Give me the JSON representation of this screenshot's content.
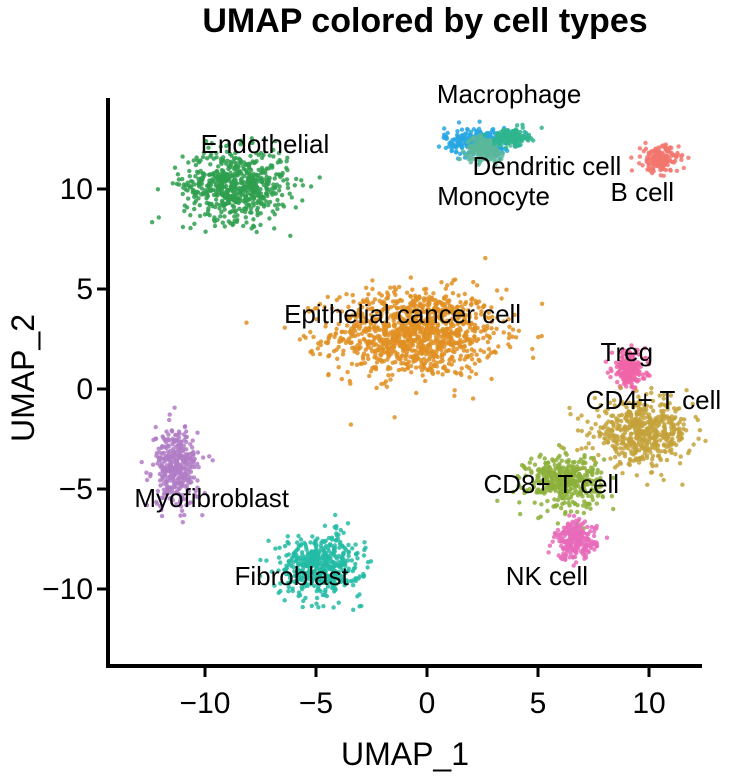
{
  "chart_data": {
    "type": "scatter",
    "title": "UMAP colored by cell types",
    "xlabel": "UMAP_1",
    "ylabel": "UMAP_2",
    "xlim": [
      -14,
      13
    ],
    "ylim": [
      -14,
      14.5
    ],
    "xticks": [
      -10,
      -5,
      0,
      5,
      10
    ],
    "xtick_labels": [
      "−10",
      "−5",
      "0",
      "5",
      "10"
    ],
    "yticks": [
      10,
      5,
      0,
      -5,
      -10
    ],
    "ytick_labels": [
      "10",
      "5",
      "0",
      "−5",
      "−10"
    ],
    "grid": false,
    "legend": "none",
    "clusters": [
      {
        "label": "Epithelial cancer cell",
        "color": "#E08F22",
        "center": [
          -0.5,
          2.8
        ],
        "spread": [
          4.5,
          2.6
        ],
        "label_at": [
          -1.1,
          3.3
        ]
      },
      {
        "label": "Endothelial",
        "color": "#2E9F4E",
        "center": [
          -8.6,
          10.2
        ],
        "spread": [
          2.8,
          2.1
        ],
        "label_at": [
          -7.3,
          11.8
        ]
      },
      {
        "label": "Macrophage",
        "color": "#27A7E3",
        "center": [
          2.3,
          12.4
        ],
        "spread": [
          1.8,
          0.8
        ],
        "label_at": [
          3.7,
          14.3
        ]
      },
      {
        "label": "Dendritic cell",
        "color": "#5AB79A",
        "center": [
          2.6,
          12.0
        ],
        "spread": [
          1.0,
          0.7
        ],
        "label_at": [
          5.4,
          10.7
        ]
      },
      {
        "label": "Monocyte",
        "color": "#2FB58E",
        "center": [
          3.8,
          12.6
        ],
        "spread": [
          0.9,
          0.5
        ],
        "label_at": [
          3.0,
          9.2
        ]
      },
      {
        "label": "B cell",
        "color": "#F2766E",
        "center": [
          10.5,
          11.5
        ],
        "spread": [
          1.0,
          0.8
        ],
        "label_at": [
          9.7,
          9.4
        ]
      },
      {
        "label": "Treg",
        "color": "#F064A8",
        "center": [
          9.1,
          1.0
        ],
        "spread": [
          0.9,
          1.1
        ],
        "label_at": [
          9.0,
          1.4
        ]
      },
      {
        "label": "CD4+ T cell",
        "color": "#C4A23A",
        "center": [
          9.7,
          -2.2
        ],
        "spread": [
          2.6,
          1.8
        ],
        "label_at": [
          10.2,
          -1.0
        ]
      },
      {
        "label": "CD8+ T cell",
        "color": "#8CB03A",
        "center": [
          6.2,
          -4.6
        ],
        "spread": [
          2.0,
          1.6
        ],
        "label_at": [
          5.6,
          -5.2
        ]
      },
      {
        "label": "NK cell",
        "color": "#E86ABA",
        "center": [
          6.7,
          -7.6
        ],
        "spread": [
          1.1,
          1.1
        ],
        "label_at": [
          5.4,
          -9.8
        ]
      },
      {
        "label": "Myofibroblast",
        "color": "#B07CC6",
        "center": [
          -11.3,
          -3.9
        ],
        "spread": [
          1.2,
          2.3
        ],
        "label_at": [
          -9.7,
          -5.9
        ]
      },
      {
        "label": "Fibroblast",
        "color": "#22BBA4",
        "center": [
          -4.8,
          -8.8
        ],
        "spread": [
          2.2,
          1.8
        ],
        "label_at": [
          -6.1,
          -9.8
        ]
      }
    ]
  }
}
